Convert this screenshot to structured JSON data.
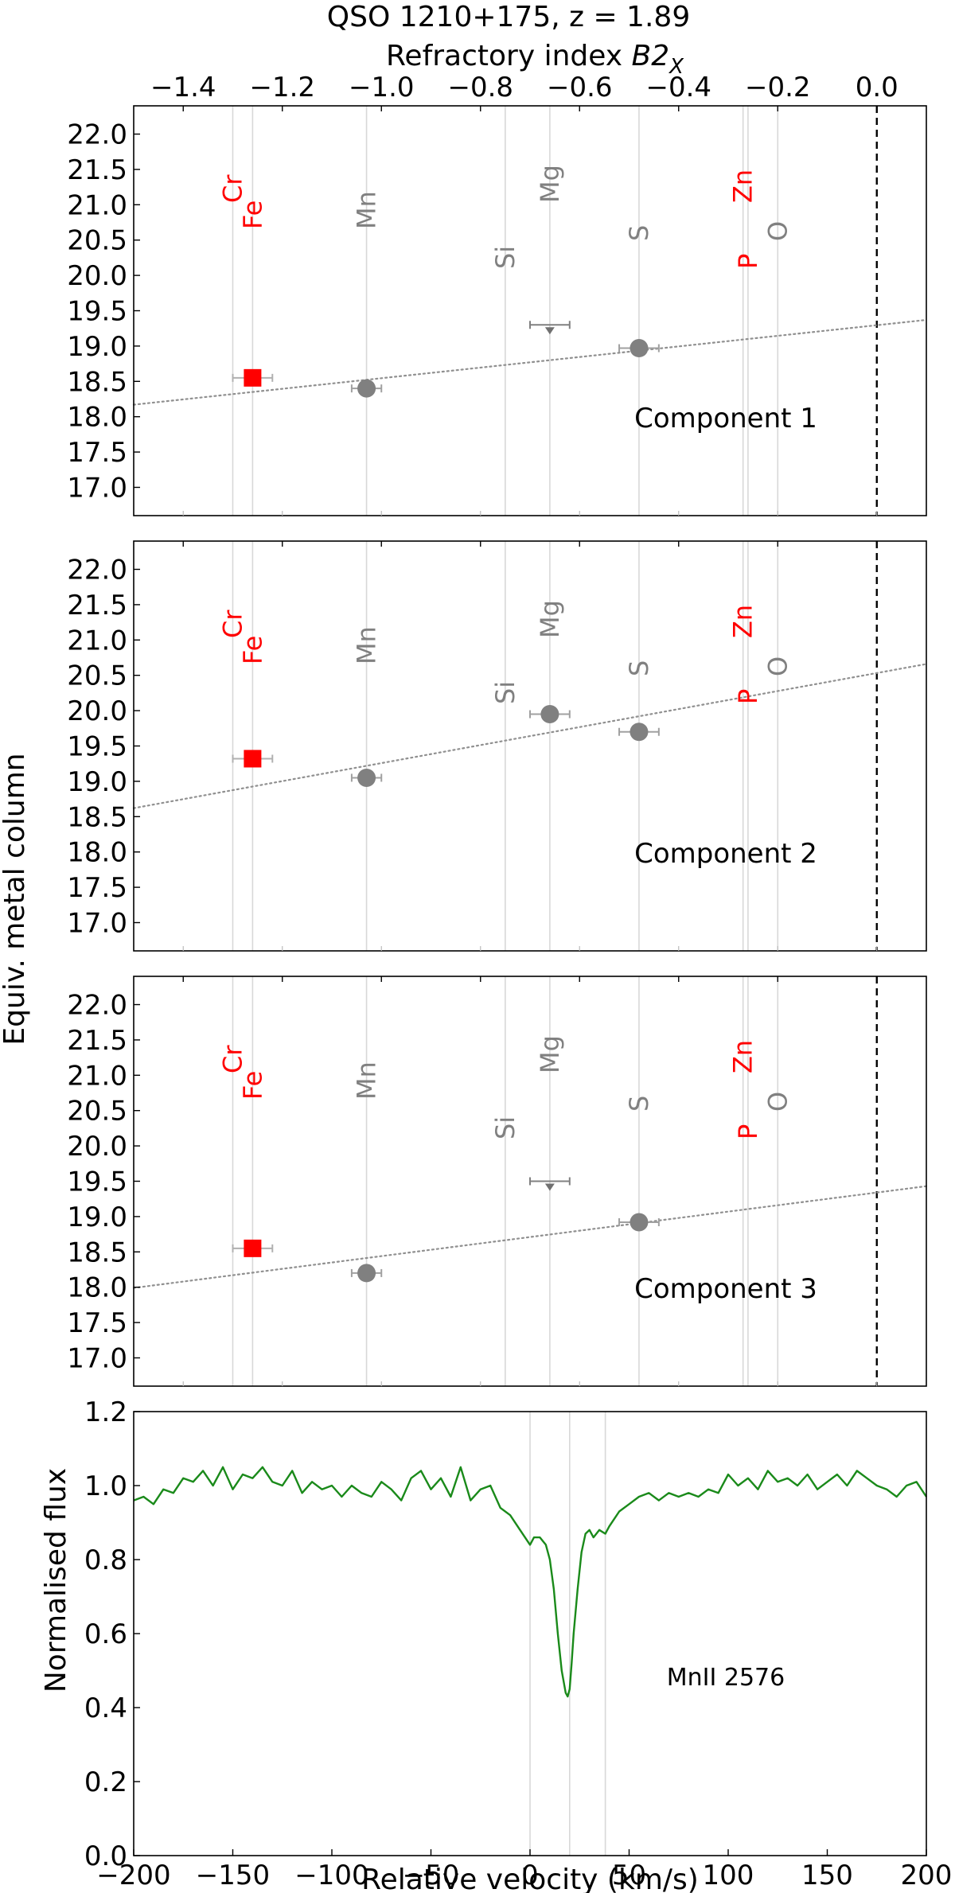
{
  "figure": {
    "title": "QSO 1210+175, z = 1.89",
    "top_axis_label_main": "Refractory index ",
    "top_axis_label_sym": "B2",
    "top_axis_label_sub": "X",
    "left_axis_label": "Equiv. metal column",
    "spectrum_ylabel": "Normalised flux",
    "spectrum_xlabel": "Relative velocity (km/s)",
    "line_label": "MnII 2576"
  },
  "colors": {
    "refractory_marker": "#ff0000",
    "volatile_marker": "#808080",
    "element_label_red": "#ff0000",
    "element_label_gray": "#808080",
    "spectrum_line": "#1a8a1a",
    "guide_line": "#d8d8d8",
    "fit_line": "#909090"
  },
  "chart_data": [
    {
      "type": "scatter",
      "title": "Component 1",
      "xlabel": "Refractory index B2X",
      "ylabel": "Equiv. metal column",
      "xlim": [
        -1.5,
        0.1
      ],
      "ylim": [
        16.6,
        22.4
      ],
      "x_ticks": [
        -1.4,
        -1.2,
        -1.0,
        -0.8,
        -0.6,
        -0.4,
        -0.2,
        0.0
      ],
      "y_ticks": [
        17.0,
        17.5,
        18.0,
        18.5,
        19.0,
        19.5,
        20.0,
        20.5,
        21.0,
        21.5,
        22.0
      ],
      "elements": [
        {
          "name": "Cr",
          "x": -1.3,
          "color": "red",
          "level": "upper"
        },
        {
          "name": "Fe",
          "x": -1.26,
          "color": "red",
          "level": "lower"
        },
        {
          "name": "Mn",
          "x": -1.03,
          "color": "gray",
          "level": "lower"
        },
        {
          "name": "Si",
          "x": -0.75,
          "color": "gray",
          "level": "lowest"
        },
        {
          "name": "Mg",
          "x": -0.66,
          "color": "gray",
          "level": "upper"
        },
        {
          "name": "S",
          "x": -0.48,
          "color": "gray",
          "level": "mid"
        },
        {
          "name": "Zn",
          "x": -0.27,
          "color": "red",
          "level": "upper"
        },
        {
          "name": "P",
          "x": -0.26,
          "color": "red",
          "level": "lowest"
        },
        {
          "name": "O",
          "x": -0.2,
          "color": "gray",
          "level": "mid"
        }
      ],
      "points": [
        {
          "element": "Fe",
          "x": -1.26,
          "y": 18.55,
          "xerr": 0.04,
          "marker": "square"
        },
        {
          "element": "Mn",
          "x": -1.03,
          "y": 18.4,
          "xerr": 0.03,
          "marker": "circle"
        },
        {
          "element": "S",
          "x": -0.48,
          "y": 18.97,
          "xerr": 0.04,
          "marker": "circle"
        }
      ],
      "upper_limits": [
        {
          "element": "Mg",
          "x": -0.66,
          "y": 19.3,
          "xerr": 0.04
        }
      ],
      "fit": {
        "x": [
          -1.5,
          0.1
        ],
        "y": [
          18.17,
          19.37
        ]
      },
      "zero_line": 0.0
    },
    {
      "type": "scatter",
      "title": "Component 2",
      "xlabel": "Refractory index B2X",
      "ylabel": "Equiv. metal column",
      "xlim": [
        -1.5,
        0.1
      ],
      "ylim": [
        16.6,
        22.4
      ],
      "x_ticks": [
        -1.4,
        -1.2,
        -1.0,
        -0.8,
        -0.6,
        -0.4,
        -0.2,
        0.0
      ],
      "y_ticks": [
        17.0,
        17.5,
        18.0,
        18.5,
        19.0,
        19.5,
        20.0,
        20.5,
        21.0,
        21.5,
        22.0
      ],
      "elements": [
        {
          "name": "Cr",
          "x": -1.3,
          "color": "red",
          "level": "upper"
        },
        {
          "name": "Fe",
          "x": -1.26,
          "color": "red",
          "level": "lower"
        },
        {
          "name": "Mn",
          "x": -1.03,
          "color": "gray",
          "level": "lower"
        },
        {
          "name": "Si",
          "x": -0.75,
          "color": "gray",
          "level": "lowest"
        },
        {
          "name": "Mg",
          "x": -0.66,
          "color": "gray",
          "level": "upper"
        },
        {
          "name": "S",
          "x": -0.48,
          "color": "gray",
          "level": "mid"
        },
        {
          "name": "Zn",
          "x": -0.27,
          "color": "red",
          "level": "upper"
        },
        {
          "name": "P",
          "x": -0.26,
          "color": "red",
          "level": "lowest"
        },
        {
          "name": "O",
          "x": -0.2,
          "color": "gray",
          "level": "mid"
        }
      ],
      "points": [
        {
          "element": "Fe",
          "x": -1.26,
          "y": 19.32,
          "xerr": 0.04,
          "marker": "square"
        },
        {
          "element": "Mn",
          "x": -1.03,
          "y": 19.05,
          "xerr": 0.03,
          "marker": "circle"
        },
        {
          "element": "Mg",
          "x": -0.66,
          "y": 19.95,
          "xerr": 0.04,
          "marker": "circle"
        },
        {
          "element": "S",
          "x": -0.48,
          "y": 19.7,
          "xerr": 0.04,
          "marker": "circle"
        }
      ],
      "upper_limits": [],
      "fit": {
        "x": [
          -1.5,
          0.1
        ],
        "y": [
          18.62,
          20.66
        ]
      },
      "zero_line": 0.0
    },
    {
      "type": "scatter",
      "title": "Component 3",
      "xlabel": "Refractory index B2X",
      "ylabel": "Equiv. metal column",
      "xlim": [
        -1.5,
        0.1
      ],
      "ylim": [
        16.6,
        22.4
      ],
      "x_ticks": [
        -1.4,
        -1.2,
        -1.0,
        -0.8,
        -0.6,
        -0.4,
        -0.2,
        0.0
      ],
      "y_ticks": [
        17.0,
        17.5,
        18.0,
        18.5,
        19.0,
        19.5,
        20.0,
        20.5,
        21.0,
        21.5,
        22.0
      ],
      "elements": [
        {
          "name": "Cr",
          "x": -1.3,
          "color": "red",
          "level": "upper"
        },
        {
          "name": "Fe",
          "x": -1.26,
          "color": "red",
          "level": "lower"
        },
        {
          "name": "Mn",
          "x": -1.03,
          "color": "gray",
          "level": "lower"
        },
        {
          "name": "Si",
          "x": -0.75,
          "color": "gray",
          "level": "lowest"
        },
        {
          "name": "Mg",
          "x": -0.66,
          "color": "gray",
          "level": "upper"
        },
        {
          "name": "S",
          "x": -0.48,
          "color": "gray",
          "level": "mid"
        },
        {
          "name": "Zn",
          "x": -0.27,
          "color": "red",
          "level": "upper"
        },
        {
          "name": "P",
          "x": -0.26,
          "color": "red",
          "level": "lowest"
        },
        {
          "name": "O",
          "x": -0.2,
          "color": "gray",
          "level": "mid"
        }
      ],
      "points": [
        {
          "element": "Fe",
          "x": -1.26,
          "y": 18.55,
          "xerr": 0.04,
          "marker": "square"
        },
        {
          "element": "Mn",
          "x": -1.03,
          "y": 18.2,
          "xerr": 0.03,
          "marker": "circle"
        },
        {
          "element": "S",
          "x": -0.48,
          "y": 18.92,
          "xerr": 0.04,
          "marker": "circle"
        }
      ],
      "upper_limits": [
        {
          "element": "Mg",
          "x": -0.66,
          "y": 19.5,
          "xerr": 0.04
        }
      ],
      "fit": {
        "x": [
          -1.5,
          0.1
        ],
        "y": [
          17.99,
          19.43
        ]
      },
      "zero_line": 0.0
    },
    {
      "type": "line",
      "title": "MnII 2576",
      "xlabel": "Relative velocity (km/s)",
      "ylabel": "Normalised flux",
      "xlim": [
        -200,
        200
      ],
      "ylim": [
        0.0,
        1.2
      ],
      "x_ticks": [
        -200,
        -150,
        -100,
        -50,
        0,
        50,
        100,
        150,
        200
      ],
      "y_ticks": [
        0.0,
        0.2,
        0.4,
        0.6,
        0.8,
        1.0,
        1.2
      ],
      "component_markers": [
        0,
        20,
        38
      ],
      "series": [
        {
          "x": [
            -200,
            -195,
            -190,
            -185,
            -180,
            -175,
            -170,
            -165,
            -160,
            -155,
            -150,
            -145,
            -140,
            -135,
            -130,
            -125,
            -120,
            -115,
            -110,
            -105,
            -100,
            -95,
            -90,
            -85,
            -80,
            -75,
            -70,
            -65,
            -60,
            -55,
            -50,
            -45,
            -40,
            -35,
            -30,
            -25,
            -20,
            -15,
            -10,
            -5,
            0,
            2,
            5,
            8,
            10,
            12,
            14,
            16,
            18,
            19,
            20,
            21,
            22,
            24,
            26,
            28,
            30,
            32,
            35,
            38,
            40,
            45,
            50,
            55,
            60,
            65,
            70,
            75,
            80,
            85,
            90,
            95,
            100,
            105,
            110,
            115,
            120,
            125,
            130,
            135,
            140,
            145,
            150,
            155,
            160,
            165,
            170,
            175,
            180,
            185,
            190,
            195,
            200
          ],
          "y": [
            0.96,
            0.97,
            0.95,
            0.99,
            0.98,
            1.02,
            1.01,
            1.04,
            1.0,
            1.05,
            0.99,
            1.03,
            1.02,
            1.05,
            1.01,
            1.0,
            1.04,
            0.98,
            1.01,
            0.99,
            1.0,
            0.97,
            1.0,
            0.98,
            0.97,
            1.01,
            0.99,
            0.96,
            1.02,
            1.04,
            0.99,
            1.02,
            0.97,
            1.05,
            0.96,
            0.99,
            1.0,
            0.94,
            0.92,
            0.88,
            0.84,
            0.86,
            0.86,
            0.84,
            0.8,
            0.72,
            0.6,
            0.5,
            0.44,
            0.43,
            0.45,
            0.52,
            0.6,
            0.72,
            0.82,
            0.87,
            0.88,
            0.86,
            0.88,
            0.87,
            0.89,
            0.93,
            0.95,
            0.97,
            0.98,
            0.96,
            0.98,
            0.97,
            0.98,
            0.97,
            0.99,
            0.98,
            1.03,
            1.0,
            1.02,
            0.99,
            1.04,
            1.01,
            1.02,
            1.0,
            1.03,
            0.99,
            1.01,
            1.03,
            1.0,
            1.04,
            1.02,
            1.0,
            0.99,
            0.97,
            1.0,
            1.01,
            0.97
          ]
        }
      ]
    }
  ]
}
